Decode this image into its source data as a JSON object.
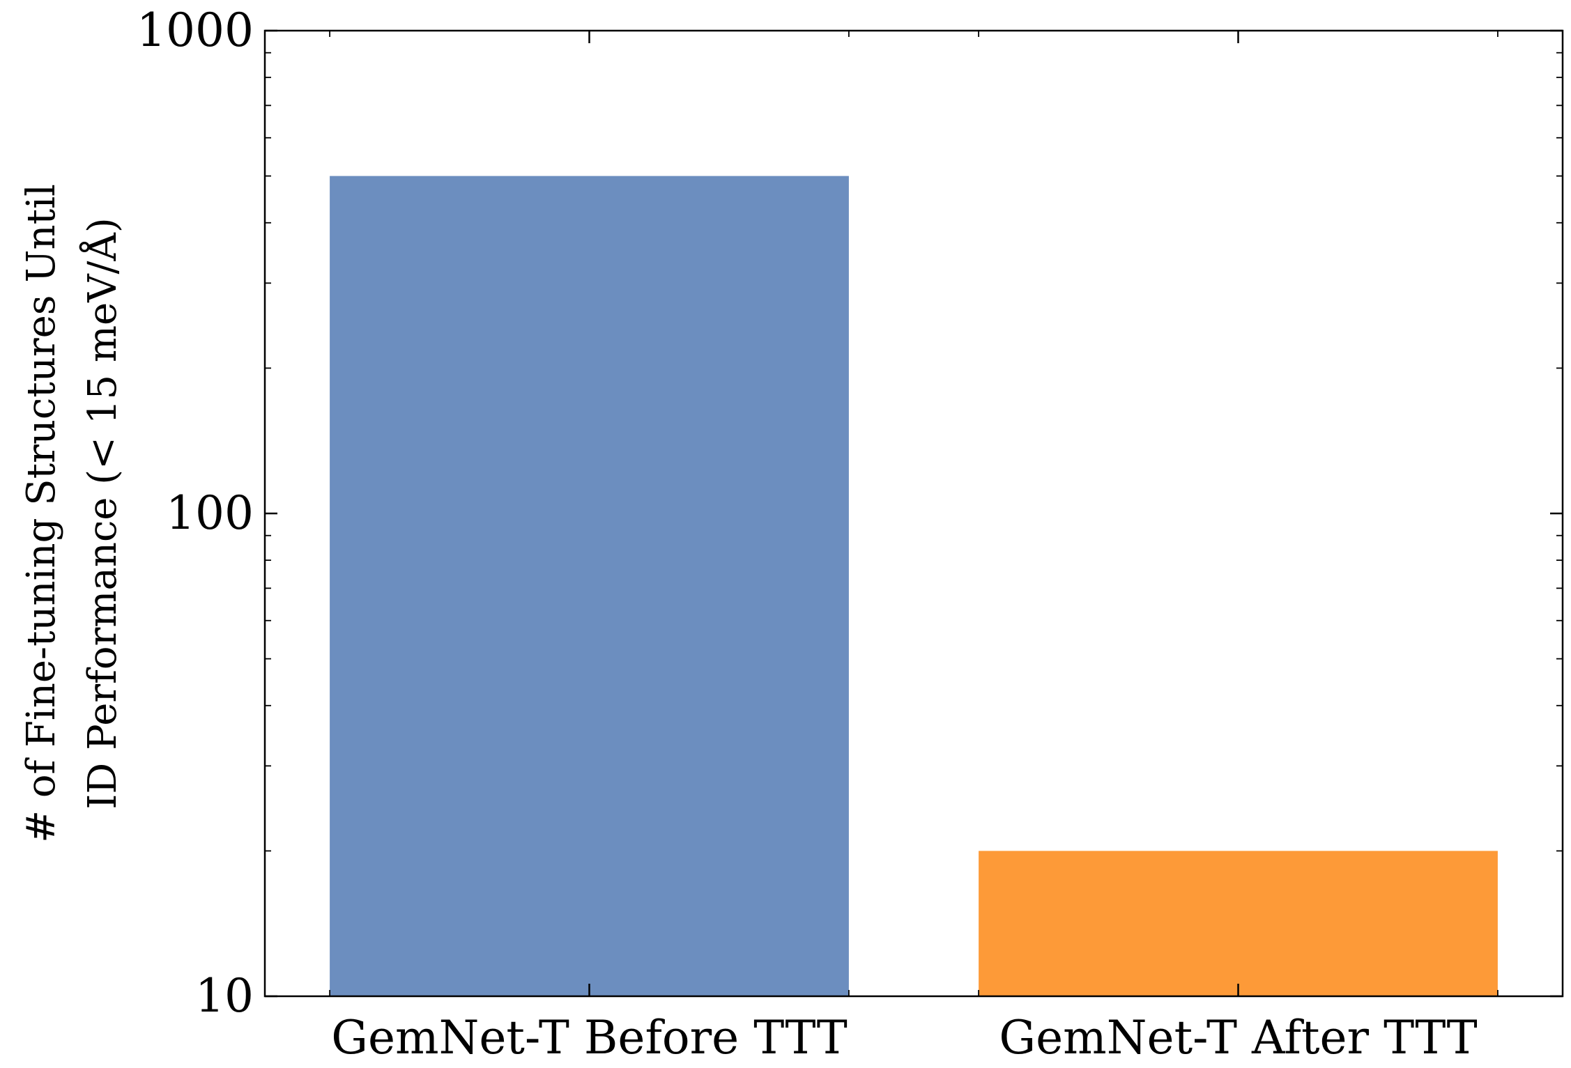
{
  "chart_data": {
    "type": "bar",
    "yscale": "log",
    "ylim": [
      10,
      1000
    ],
    "categories": [
      "GemNet-T Before TTT",
      "GemNet-T After TTT"
    ],
    "values": [
      500,
      20
    ],
    "colors": [
      "#6c8ebf",
      "#fd9a38"
    ],
    "ylabel_lines": [
      "# of Fine-tuning Structures Until",
      "ID Performance (< 15 meV/Å)"
    ],
    "yticks": [
      10,
      100,
      1000
    ],
    "ytick_labels": [
      "10",
      "100",
      "1000"
    ],
    "grid": false
  }
}
